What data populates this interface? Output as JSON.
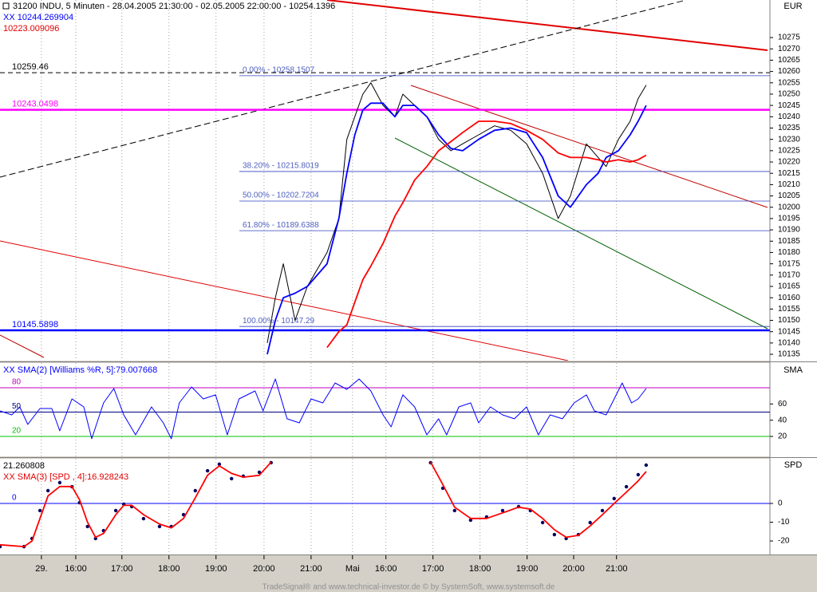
{
  "footer": "TradeSignal® and www.technical-investor.de © by SystemSoft, www.systemsoft.de",
  "chart_data": [
    {
      "type": "line",
      "title": "31200  INDU, 5 Minuten - 28.04.2005 21:30:00 - 02.05.2005 22:00:00 - 10254.1396",
      "y_axis_label": "EUR",
      "xlim": [
        0,
        16.36
      ],
      "ylim": [
        10132.2,
        10291.6
      ],
      "yticks": [
        10135,
        10140,
        10145,
        10150,
        10155,
        10160,
        10165,
        10170,
        10175,
        10180,
        10185,
        10190,
        10195,
        10200,
        10205,
        10210,
        10215,
        10220,
        10225,
        10230,
        10235,
        10240,
        10245,
        10250,
        10255,
        10260,
        10265,
        10270,
        10275
      ],
      "x": [
        5.68,
        5.85,
        6.02,
        6.27,
        6.53,
        6.95,
        7.2,
        7.37,
        7.54,
        7.71,
        7.88,
        8.14,
        8.39,
        8.56,
        8.81,
        9.07,
        9.32,
        9.58,
        9.83,
        10.17,
        10.51,
        10.85,
        11.19,
        11.53,
        11.86,
        12.12,
        12.46,
        12.71,
        12.88,
        13.14,
        13.39,
        13.56,
        13.73
      ],
      "series": [
        {
          "color": "#000000",
          "values": [
            10140,
            10160,
            10175,
            10150,
            10165,
            10180,
            10195,
            10230,
            10240,
            10250,
            10255,
            10245,
            10240,
            10250,
            10245,
            10240,
            10230,
            10225,
            10228,
            10232,
            10236,
            10234,
            10228,
            10215,
            10195,
            10205,
            10228,
            10222,
            10218,
            10230,
            10238,
            10248,
            10254
          ]
        },
        {
          "name": "XX 10244.269904",
          "color": "#0000ff",
          "values": [
            10135,
            10150,
            10160,
            10162,
            10165,
            10175,
            10195,
            10215,
            10232,
            10243,
            10246,
            10246,
            10240,
            10245,
            10245,
            10240,
            10232,
            10226,
            10225,
            10230,
            10234,
            10235,
            10233,
            10222,
            10205,
            10200,
            10210,
            10215,
            10222,
            10225,
            10232,
            10238,
            10245
          ]
        },
        {
          "name": "10223.009096",
          "color": "#ff0000",
          "values": [
            null,
            null,
            null,
            null,
            null,
            10138,
            10145,
            10148,
            10158,
            10168,
            10174,
            10184,
            10196,
            10202,
            10212,
            10218,
            10225,
            10229,
            10233,
            10238,
            10238,
            10237,
            10234,
            10230,
            10224,
            10222,
            10222,
            10221,
            10220,
            10221,
            10220,
            10221,
            10223
          ]
        }
      ],
      "levels": [
        {
          "value": 10259.46,
          "color": "#000000",
          "dash": true
        },
        {
          "value": 10243.0498,
          "color": "#ff00ff"
        },
        {
          "value": 10145.5898,
          "color": "#0000ff"
        }
      ],
      "fibonacci": [
        {
          "value": 10258.1507,
          "label": "0.00% - 10258.1507"
        },
        {
          "value": 10215.8019,
          "label": "38.20% - 10215.8019"
        },
        {
          "value": 10202.7204,
          "label": "50.00% - 10202.7204"
        },
        {
          "value": 10189.6388,
          "label": "61.80% - 10189.6388"
        },
        {
          "value": 10147.29,
          "label": "100.00% - 10147.29"
        }
      ]
    },
    {
      "type": "line",
      "title": "XX SMA(2) [Williams %R, 5]:79.007668",
      "y_axis_label": "SMA",
      "xlim": [
        0,
        16.36
      ],
      "ylim": [
        -4.6,
        110.5
      ],
      "yticks": [
        20,
        40,
        60
      ],
      "levels": [
        {
          "value": 80,
          "color": "#c000c0"
        },
        {
          "value": 50,
          "color": "#000080"
        },
        {
          "value": 20,
          "color": "#00c000"
        }
      ],
      "x": [
        0,
        0.25,
        0.42,
        0.59,
        0.85,
        1.1,
        1.27,
        1.53,
        1.78,
        1.95,
        2.2,
        2.42,
        2.63,
        2.88,
        3.22,
        3.47,
        3.64,
        3.81,
        4.07,
        4.32,
        4.58,
        4.83,
        5.08,
        5.42,
        5.59,
        5.85,
        6.1,
        6.36,
        6.61,
        6.86,
        7.12,
        7.37,
        7.63,
        7.88,
        8.14,
        8.31,
        8.56,
        8.81,
        9.07,
        9.32,
        9.49,
        9.75,
        10.0,
        10.17,
        10.42,
        10.68,
        10.93,
        11.19,
        11.44,
        11.69,
        11.95,
        12.2,
        12.46,
        12.63,
        12.88,
        13.05,
        13.22,
        13.42,
        13.56,
        13.73
      ],
      "series": [
        {
          "color": "#0000ff",
          "values": [
            51.5,
            46.6,
            56.4,
            34.8,
            54.4,
            54.4,
            26.9,
            66.2,
            56.4,
            17.1,
            61.3,
            79.0,
            46.6,
            22.0,
            56.4,
            36.7,
            17.1,
            61.3,
            81.0,
            66.2,
            71.2,
            22.0,
            66.2,
            76.1,
            51.5,
            90.8,
            41.7,
            36.7,
            66.2,
            61.3,
            85.9,
            78.0,
            90.8,
            76.1,
            46.6,
            31.8,
            71.2,
            56.4,
            22.0,
            41.7,
            22.0,
            56.4,
            61.3,
            36.7,
            56.4,
            46.6,
            41.7,
            56.4,
            22.0,
            46.6,
            41.7,
            61.3,
            71.2,
            51.5,
            46.6,
            66.2,
            85.9,
            61.3,
            66.2,
            79.0
          ]
        }
      ]
    },
    {
      "type": "line",
      "subtitle": "21.260808",
      "title": "XX SMA(3) [SPD , 4]:16.928243",
      "y_axis_label": "SPD",
      "xlim": [
        0,
        16.36
      ],
      "xticks": [
        {
          "value": 0.88,
          "label": "29."
        },
        {
          "value": 1.61,
          "label": "16:00"
        },
        {
          "value": 2.59,
          "label": "17:00"
        },
        {
          "value": 3.59,
          "label": "18:00"
        },
        {
          "value": 4.59,
          "label": "19:00"
        },
        {
          "value": 5.61,
          "label": "20:00"
        },
        {
          "value": 6.61,
          "label": "21:00"
        },
        {
          "value": 7.49,
          "label": "Mai"
        },
        {
          "value": 8.2,
          "label": "16:00"
        },
        {
          "value": 9.2,
          "label": "17:00"
        },
        {
          "value": 10.2,
          "label": "18:00"
        },
        {
          "value": 11.2,
          "label": "19:00"
        },
        {
          "value": 12.19,
          "label": "20:00"
        },
        {
          "value": 13.1,
          "label": "21:00"
        }
      ],
      "ylim": [
        -27.2,
        23.8
      ],
      "yticks": [
        -20,
        -10,
        0
      ],
      "levels": [
        {
          "value": 0,
          "color": "#0000ff"
        }
      ],
      "x": [
        0,
        0.51,
        0.68,
        0.85,
        1.02,
        1.27,
        1.53,
        1.69,
        1.86,
        2.03,
        2.2,
        2.46,
        2.63,
        2.8,
        3.05,
        3.39,
        3.64,
        3.9,
        4.15,
        4.41,
        4.66,
        4.92,
        5.17,
        5.51,
        5.76,
        7.5,
        9.15,
        9.41,
        9.66,
        10.0,
        10.34,
        10.68,
        11.02,
        11.27,
        11.53,
        11.78,
        12.03,
        12.29,
        12.54,
        12.8,
        13.05,
        13.31,
        13.56,
        13.73
      ],
      "series": [
        {
          "color": "#000060",
          "style": "dots",
          "values": [
            -23.0,
            -23.0,
            -18.7,
            -3.8,
            6.8,
            11.1,
            8.9,
            0.4,
            -12.3,
            -18.7,
            -14.5,
            -3.8,
            -0.4,
            -1.7,
            -8.1,
            -12.3,
            -12.3,
            -6.0,
            6.8,
            17.4,
            20.9,
            13.2,
            14.5,
            16.6,
            21.7,
            null,
            21.7,
            8.1,
            -3.8,
            -8.9,
            -7.2,
            -3.8,
            -1.7,
            -3.8,
            -10.2,
            -16.6,
            -18.7,
            -16.6,
            -10.2,
            -3.8,
            2.6,
            8.9,
            15.3,
            20.4
          ]
        },
        {
          "color": "#ff0000",
          "values": [
            -22,
            -23,
            -20,
            -8,
            4,
            9,
            9,
            2,
            -10,
            -18,
            -16,
            -6,
            -1,
            -1,
            -6,
            -11,
            -13,
            -8,
            3,
            15,
            20,
            16,
            14,
            15,
            22,
            null,
            22,
            10,
            -2,
            -8,
            -8,
            -5,
            -2,
            -3,
            -8,
            -14,
            -18,
            -17,
            -12,
            -6,
            0,
            6,
            12,
            17
          ]
        }
      ]
    }
  ]
}
